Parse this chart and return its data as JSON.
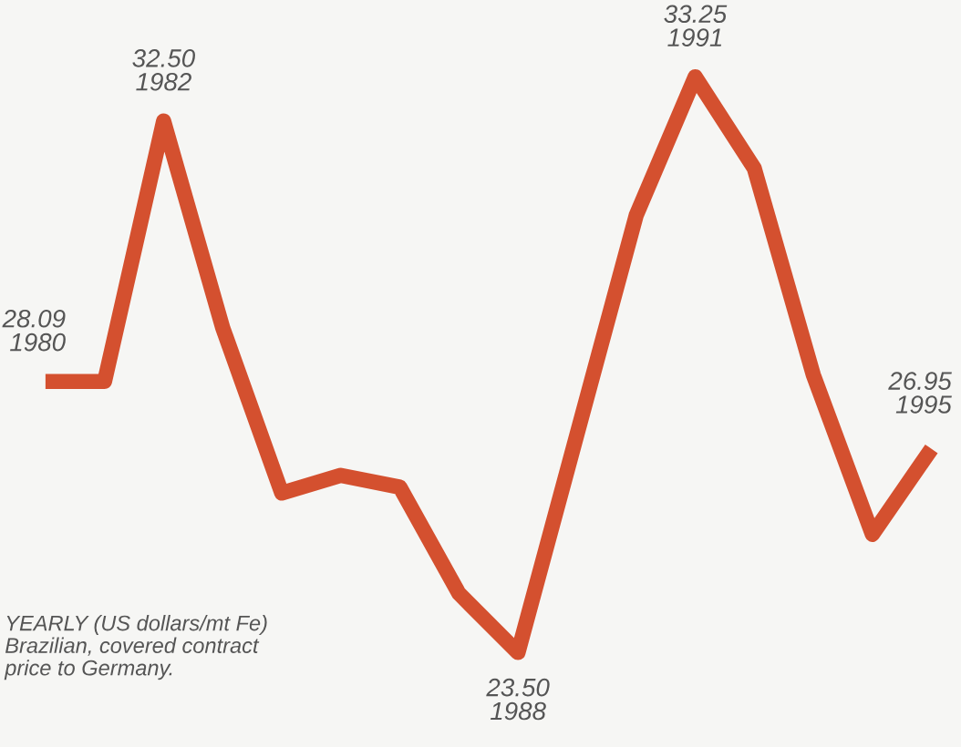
{
  "chart_data": {
    "type": "line",
    "categories": [
      null,
      null,
      null,
      null,
      null,
      null,
      null,
      null,
      null,
      null,
      null,
      null,
      null,
      null,
      null,
      null
    ],
    "series": [
      {
        "color": "#d4502f",
        "values": [
          28.09,
          28.09,
          32.5,
          29.0,
          26.2,
          26.5,
          26.3,
          24.5,
          23.5,
          27.2,
          30.9,
          33.25,
          31.7,
          28.2,
          25.5,
          26.95
        ],
        "value_labels": [
          "28.09\n1980",
          null,
          "32.50\n1982",
          null,
          null,
          null,
          null,
          null,
          "23.50\n1988",
          null,
          null,
          "33.25\n1991",
          null,
          null,
          null,
          "26.95\n1995"
        ]
      }
    ],
    "ylim": [
      21.9,
      34.55
    ],
    "marker": "none",
    "line_style": "solid",
    "annotations": [
      "YEARLY (US dollars/mt Fe)\nBrazilian, covered contract\nprice to Germany."
    ]
  }
}
